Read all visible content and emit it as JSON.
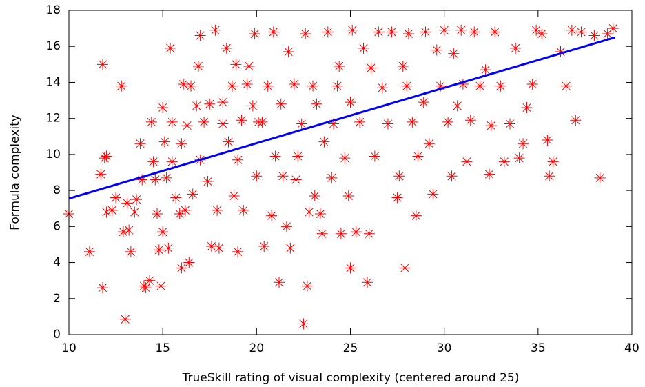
{
  "chart_data": {
    "type": "scatter",
    "xlabel": "TrueSkill rating of visual complexity (centered around 25)",
    "ylabel": "Formula complexity",
    "xlim": [
      10,
      40
    ],
    "xticks": [
      10,
      15,
      20,
      25,
      30,
      35,
      40
    ],
    "ylim": [
      0,
      18
    ],
    "yticks": [
      0,
      2,
      4,
      6,
      8,
      10,
      12,
      14,
      16,
      18
    ],
    "grid": false,
    "series": [
      {
        "color": "#ff0000",
        "mode": "markers",
        "x": [
          10,
          11.1,
          11.7,
          11.8,
          11.8,
          11.9,
          12,
          12,
          12.3,
          12.5,
          12.8,
          12.9,
          13,
          13.1,
          13.2,
          13.3,
          13.5,
          13.6,
          13.8,
          13.9,
          14,
          14.1,
          14.3,
          14.4,
          14.5,
          14.6,
          14.7,
          14.8,
          14.9,
          15,
          15,
          15.1,
          15.2,
          15.3,
          15.4,
          15.5,
          15.5,
          15.7,
          15.9,
          16,
          16,
          16.1,
          16.2,
          16.3,
          16.4,
          16.5,
          16.6,
          16.8,
          16.9,
          17,
          17,
          17.2,
          17.4,
          17.5,
          17.6,
          17.8,
          17.9,
          18,
          18.2,
          18.2,
          18.4,
          18.5,
          18.7,
          18.8,
          18.9,
          19,
          19,
          19.2,
          19.3,
          19.5,
          19.6,
          19.8,
          19.9,
          20,
          20.1,
          20.3,
          20.4,
          20.6,
          20.8,
          20.9,
          21,
          21.2,
          21.3,
          21.4,
          21.6,
          21.7,
          21.8,
          22,
          22.1,
          22.2,
          22.4,
          22.5,
          22.6,
          22.7,
          22.8,
          23,
          23.1,
          23.2,
          23.4,
          23.5,
          23.6,
          23.8,
          24,
          24.1,
          24.3,
          24.4,
          24.5,
          24.7,
          24.9,
          25,
          25,
          25.1,
          25.3,
          25.5,
          25.7,
          25.9,
          26,
          26.1,
          26.3,
          26.5,
          26.7,
          27,
          27.2,
          27.5,
          27.6,
          27.8,
          27.9,
          28,
          28.1,
          28.3,
          28.5,
          28.6,
          28.9,
          29,
          29.2,
          29.4,
          29.6,
          29.8,
          30,
          30.2,
          30.4,
          30.5,
          30.7,
          30.9,
          31,
          31.2,
          31.4,
          31.6,
          31.9,
          32.2,
          32.4,
          32.5,
          32.7,
          33,
          33.2,
          33.5,
          33.8,
          34,
          34.2,
          34.4,
          34.7,
          34.9,
          35.2,
          35.5,
          35.6,
          35.8,
          36.2,
          36.5,
          36.8,
          37,
          37.3,
          38,
          38.3,
          38.7,
          39
        ],
        "values": [
          6.7,
          4.6,
          8.9,
          15,
          2.6,
          9.8,
          9.9,
          6.8,
          6.9,
          7.6,
          13.8,
          5.7,
          0.85,
          7.3,
          5.8,
          4.6,
          6.8,
          7.5,
          10.6,
          8.6,
          2.7,
          2.6,
          3,
          11.8,
          9.6,
          8.6,
          6.7,
          4.7,
          2.7,
          12.6,
          5.7,
          10.7,
          8.7,
          4.8,
          15.9,
          9.6,
          11.8,
          7.6,
          6.7,
          10.6,
          3.7,
          13.9,
          6.9,
          11.6,
          4,
          13.8,
          7.8,
          12.7,
          14.9,
          9.7,
          16.6,
          11.8,
          8.5,
          12.8,
          4.9,
          16.9,
          6.9,
          4.8,
          11.7,
          12.9,
          15.9,
          10.7,
          13.8,
          7.7,
          15,
          4.6,
          9.7,
          11.9,
          6.9,
          13.9,
          14.9,
          12.7,
          16.7,
          8.8,
          11.8,
          11.8,
          4.9,
          13.8,
          6.6,
          16.8,
          9.9,
          2.9,
          12.8,
          8.8,
          6,
          15.7,
          4.8,
          13.9,
          8.6,
          9.9,
          11.7,
          0.6,
          16.7,
          2.7,
          6.8,
          13.8,
          7.7,
          12.8,
          6.7,
          5.6,
          10.7,
          16.8,
          8.7,
          11.7,
          13.8,
          14.9,
          5.6,
          9.8,
          7.7,
          3.7,
          12.9,
          16.9,
          5.7,
          11.8,
          15.9,
          2.9,
          5.6,
          14.8,
          9.9,
          16.8,
          13.7,
          11.7,
          16.8,
          7.6,
          8.8,
          14.9,
          3.7,
          13.8,
          16.7,
          11.8,
          6.6,
          9.9,
          12.9,
          16.8,
          10.6,
          7.8,
          15.8,
          13.8,
          16.9,
          11.8,
          8.8,
          15.6,
          12.7,
          16.9,
          13.9,
          9.6,
          11.9,
          16.8,
          13.8,
          14.7,
          8.9,
          11.6,
          16.8,
          13.8,
          9.6,
          11.7,
          15.9,
          9.8,
          10.6,
          12.6,
          13.9,
          16.9,
          16.7,
          10.8,
          8.8,
          9.6,
          15.7,
          13.8,
          16.9,
          11.9,
          16.8,
          16.6,
          8.7,
          16.7,
          17
        ]
      },
      {
        "color": "#0000ff",
        "mode": "line",
        "x": [
          10,
          39.1
        ],
        "values": [
          7.55,
          16.5
        ]
      }
    ]
  }
}
